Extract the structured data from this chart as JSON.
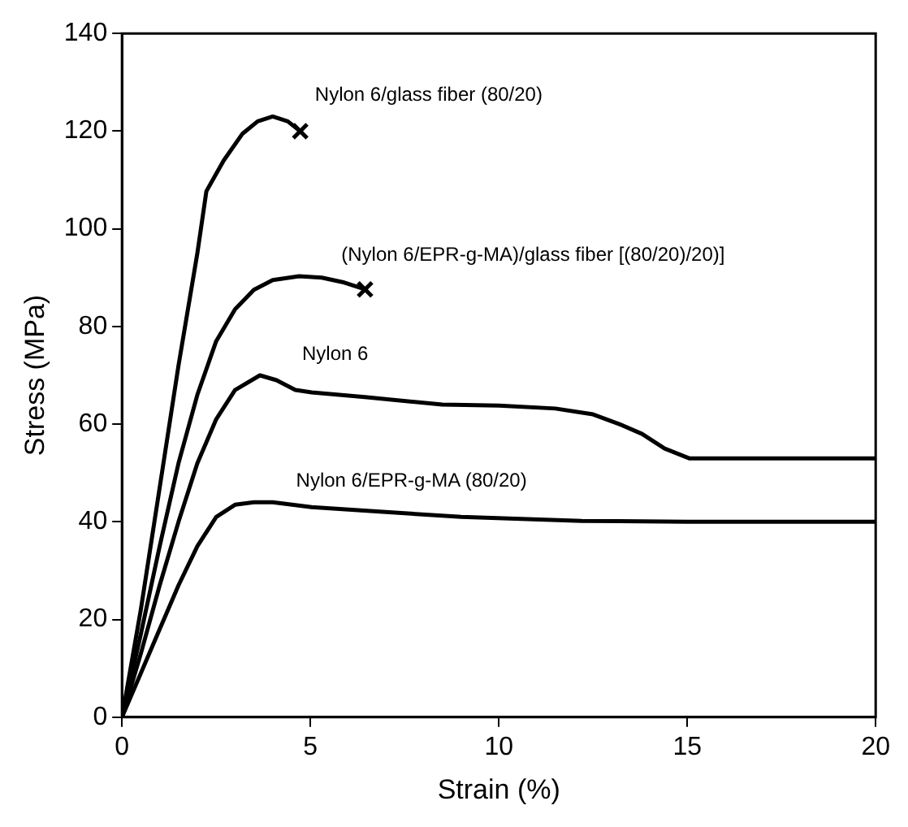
{
  "chart_data": {
    "type": "line",
    "xlabel": "Strain (%)",
    "ylabel": "Stress (MPa)",
    "xlim": [
      0,
      20
    ],
    "xticks": [
      0,
      5,
      10,
      15,
      20
    ],
    "ylim": [
      0,
      140
    ],
    "yticks": [
      0,
      20,
      40,
      60,
      80,
      100,
      120,
      140
    ],
    "grid": false,
    "legend": false,
    "marker": "none",
    "line_style": "solid",
    "series": [
      {
        "name": "Nylon 6/glass fiber (80/20)",
        "color": "#000000",
        "x": [
          0,
          0.5,
          1,
          1.5,
          2,
          2.24,
          2.7,
          3.2,
          3.6,
          4,
          4.4,
          4.73
        ],
        "values": [
          0,
          22,
          47,
          72,
          95,
          107.7,
          114,
          119.5,
          122,
          123,
          122,
          120
        ]
      },
      {
        "name": "(Nylon 6/EPR-g-MA)/glass fiber [(80/20)/20)]",
        "color": "#000000",
        "x": [
          0,
          0.5,
          1,
          1.5,
          2,
          2.5,
          3,
          3.5,
          4,
          4.7,
          5.3,
          5.9,
          6.45
        ],
        "values": [
          0,
          17,
          35,
          52,
          66,
          77,
          83.5,
          87.5,
          89.5,
          90.3,
          90,
          89,
          87.6
        ]
      },
      {
        "name": "Nylon 6",
        "color": "#000000",
        "x": [
          0,
          0.5,
          1,
          1.5,
          2,
          2.5,
          3,
          3.66,
          4.1,
          4.6,
          5.03,
          6.5,
          8.5,
          10,
          11.5,
          12.5,
          13.2,
          13.8,
          14.4,
          15.05,
          17,
          20
        ],
        "values": [
          0,
          13,
          27,
          40,
          52,
          61,
          67,
          70,
          69,
          67,
          66.5,
          65.5,
          64,
          63.8,
          63.2,
          62,
          60,
          58,
          55,
          53,
          53,
          53
        ]
      },
      {
        "name": "Nylon 6/EPR-g-MA (80/20)",
        "color": "#000000",
        "x": [
          0,
          0.5,
          1,
          1.5,
          2,
          2.5,
          3,
          3.5,
          4,
          5.03,
          7,
          9,
          12.2,
          15,
          20
        ],
        "values": [
          0,
          9,
          18,
          27,
          35,
          41,
          43.5,
          44,
          44,
          43,
          42,
          41,
          40.2,
          40,
          40
        ]
      }
    ]
  }
}
